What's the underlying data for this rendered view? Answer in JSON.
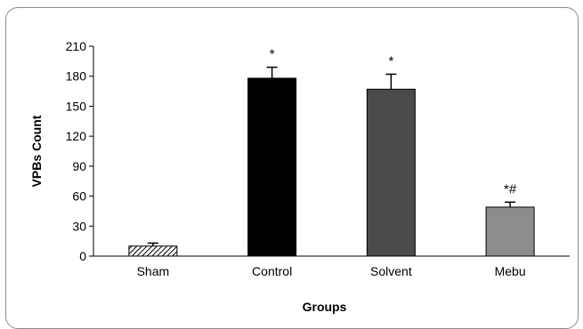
{
  "chart_data": {
    "type": "bar",
    "title": "",
    "xlabel": "Groups",
    "ylabel": "VPBs Count",
    "ylim": [
      0,
      210
    ],
    "yticks": [
      0,
      30,
      60,
      90,
      120,
      150,
      180,
      210
    ],
    "grid": false,
    "legend": "none",
    "categories": [
      "Sham",
      "Control",
      "Solvent",
      "Mebu"
    ],
    "values": [
      10,
      178,
      167,
      49
    ],
    "errors": [
      3,
      11,
      15,
      5
    ],
    "annotations": [
      "",
      "*",
      "*",
      "*#"
    ],
    "colors": [
      "#d9d9d9",
      "#000000",
      "#4a4a4a",
      "#8c8c8c"
    ],
    "patterns": [
      "hatch",
      "solid",
      "solid",
      "solid"
    ]
  }
}
